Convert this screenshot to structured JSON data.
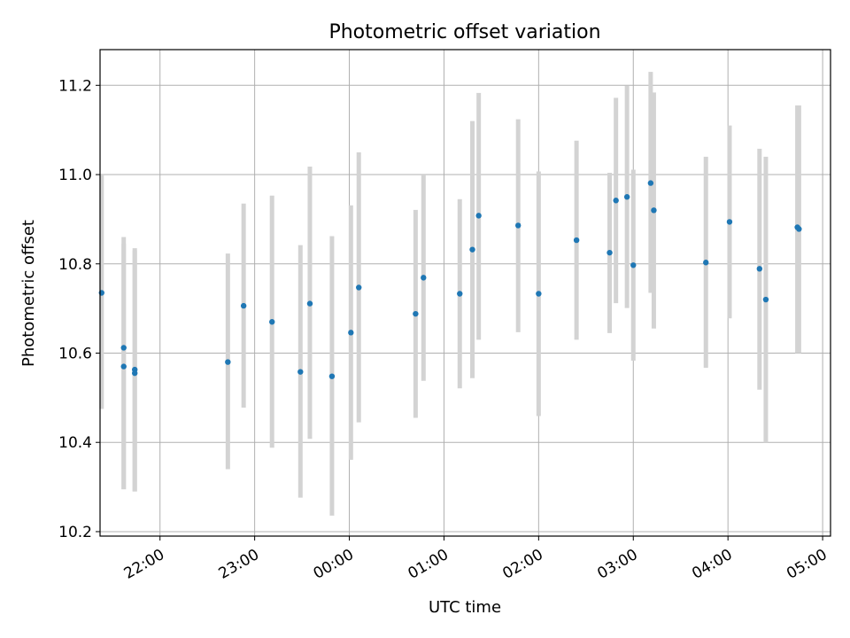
{
  "chart_data": {
    "type": "scatter",
    "title": "Photometric offset variation",
    "xlabel": "UTC time",
    "ylabel": "Photometric offset",
    "x_ticks": [
      "22:00",
      "23:00",
      "00:00",
      "01:00",
      "02:00",
      "03:00",
      "04:00",
      "05:00"
    ],
    "y_ticks": [
      "10.2",
      "10.4",
      "10.6",
      "10.8",
      "11.0",
      "11.2"
    ],
    "xlim": [
      "21:22",
      "05:05"
    ],
    "ylim": [
      10.19,
      11.28
    ],
    "grid": true,
    "legend": "none",
    "colors": {
      "marker": "#1f77b4",
      "errorbar": "#d3d3d3",
      "grid": "#b0b0b0"
    },
    "points": [
      {
        "x": "21:23",
        "y": 10.735,
        "err_low": 10.475,
        "err_high": 11.0
      },
      {
        "x": "21:37",
        "y": 10.612,
        "err_low": 10.295,
        "err_high": 10.86
      },
      {
        "x": "21:37",
        "y": 10.57,
        "err_low": 10.295,
        "err_high": 10.845
      },
      {
        "x": "21:44",
        "y": 10.563,
        "err_low": 10.29,
        "err_high": 10.835
      },
      {
        "x": "21:44",
        "y": 10.555,
        "err_low": 10.29,
        "err_high": 10.83
      },
      {
        "x": "22:43",
        "y": 10.58,
        "err_low": 10.34,
        "err_high": 10.823
      },
      {
        "x": "22:53",
        "y": 10.706,
        "err_low": 10.478,
        "err_high": 10.935
      },
      {
        "x": "23:11",
        "y": 10.67,
        "err_low": 10.388,
        "err_high": 10.953
      },
      {
        "x": "23:29",
        "y": 10.558,
        "err_low": 10.276,
        "err_high": 10.842
      },
      {
        "x": "23:35",
        "y": 10.711,
        "err_low": 10.408,
        "err_high": 11.018
      },
      {
        "x": "23:49",
        "y": 10.548,
        "err_low": 10.236,
        "err_high": 10.862
      },
      {
        "x": "00:01",
        "y": 10.646,
        "err_low": 10.361,
        "err_high": 10.931
      },
      {
        "x": "00:06",
        "y": 10.747,
        "err_low": 10.445,
        "err_high": 11.05
      },
      {
        "x": "00:42",
        "y": 10.688,
        "err_low": 10.455,
        "err_high": 10.921
      },
      {
        "x": "00:47",
        "y": 10.769,
        "err_low": 10.538,
        "err_high": 11.0
      },
      {
        "x": "01:10",
        "y": 10.733,
        "err_low": 10.521,
        "err_high": 10.945
      },
      {
        "x": "01:18",
        "y": 10.832,
        "err_low": 10.544,
        "err_high": 11.12
      },
      {
        "x": "01:22",
        "y": 10.908,
        "err_low": 10.63,
        "err_high": 11.183
      },
      {
        "x": "01:47",
        "y": 10.886,
        "err_low": 10.647,
        "err_high": 11.124
      },
      {
        "x": "02:00",
        "y": 10.733,
        "err_low": 10.459,
        "err_high": 11.007
      },
      {
        "x": "02:24",
        "y": 10.853,
        "err_low": 10.63,
        "err_high": 11.076
      },
      {
        "x": "02:45",
        "y": 10.825,
        "err_low": 10.645,
        "err_high": 11.004
      },
      {
        "x": "02:49",
        "y": 10.942,
        "err_low": 10.712,
        "err_high": 11.172
      },
      {
        "x": "02:56",
        "y": 10.95,
        "err_low": 10.701,
        "err_high": 11.199
      },
      {
        "x": "03:00",
        "y": 10.797,
        "err_low": 10.583,
        "err_high": 11.011
      },
      {
        "x": "03:11",
        "y": 10.981,
        "err_low": 10.735,
        "err_high": 11.23
      },
      {
        "x": "03:13",
        "y": 10.92,
        "err_low": 10.655,
        "err_high": 11.184
      },
      {
        "x": "03:46",
        "y": 10.803,
        "err_low": 10.567,
        "err_high": 11.04
      },
      {
        "x": "04:01",
        "y": 10.894,
        "err_low": 10.678,
        "err_high": 11.11
      },
      {
        "x": "04:20",
        "y": 10.789,
        "err_low": 10.518,
        "err_high": 11.058
      },
      {
        "x": "04:24",
        "y": 10.72,
        "err_low": 10.4,
        "err_high": 11.04
      },
      {
        "x": "04:44",
        "y": 10.882,
        "err_low": 10.6,
        "err_high": 11.155
      },
      {
        "x": "04:45",
        "y": 10.878,
        "err_low": 10.6,
        "err_high": 11.155
      }
    ]
  }
}
